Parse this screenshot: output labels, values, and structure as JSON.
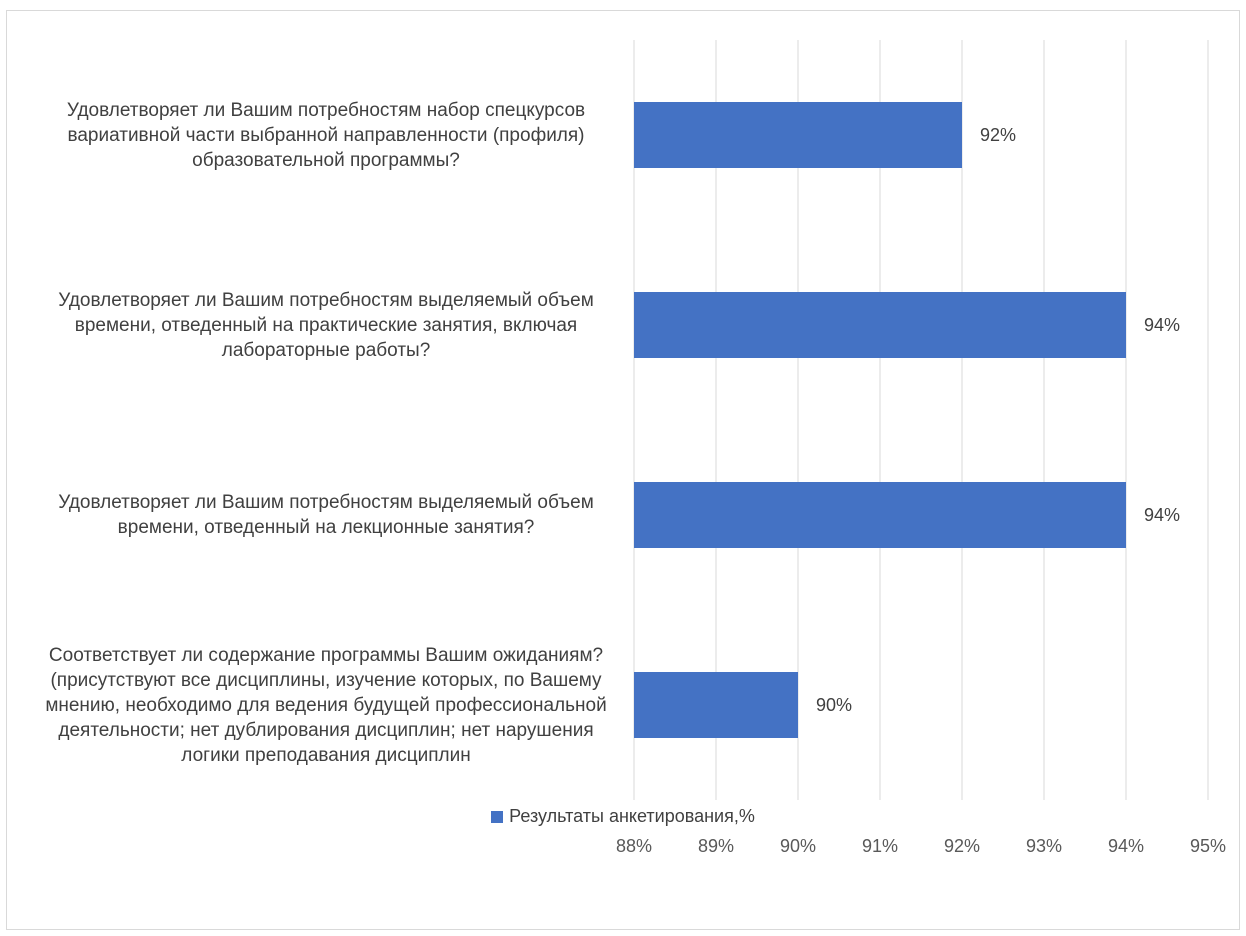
{
  "chart_data": {
    "type": "bar",
    "orientation": "horizontal",
    "categories": [
      "Удовлетворяет ли Вашим потребностям набор спецкурсов вариативной части выбранной направленности (профиля) образовательной программы?",
      "Удовлетворяет ли Вашим потребностям выделяемый объем времени, отведенный на практические занятия, включая лабораторные работы?",
      "Удовлетворяет ли Вашим потребностям выделяемый объем времени, отведенный на лекционные занятия?",
      "Соответствует ли содержание программы Вашим ожиданиям? (присутствуют все дисциплины, изучение которых, по Вашему мнению, необходимо для ведения будущей профессиональной деятельности; нет дублирования дисциплин; нет нарушения логики преподавания дисциплин"
    ],
    "series": [
      {
        "name": "Результаты анкетирования,%",
        "values": [
          92,
          94,
          94,
          90
        ],
        "color": "#4472c4"
      }
    ],
    "data_labels": [
      "92%",
      "94%",
      "94%",
      "90%"
    ],
    "xlim": [
      88,
      95
    ],
    "xticks": [
      88,
      89,
      90,
      91,
      92,
      93,
      94,
      95
    ],
    "xtick_labels": [
      "88%",
      "89%",
      "90%",
      "91%",
      "92%",
      "93%",
      "94%",
      "95%"
    ],
    "grid": "vertical",
    "legend": "bottom"
  }
}
